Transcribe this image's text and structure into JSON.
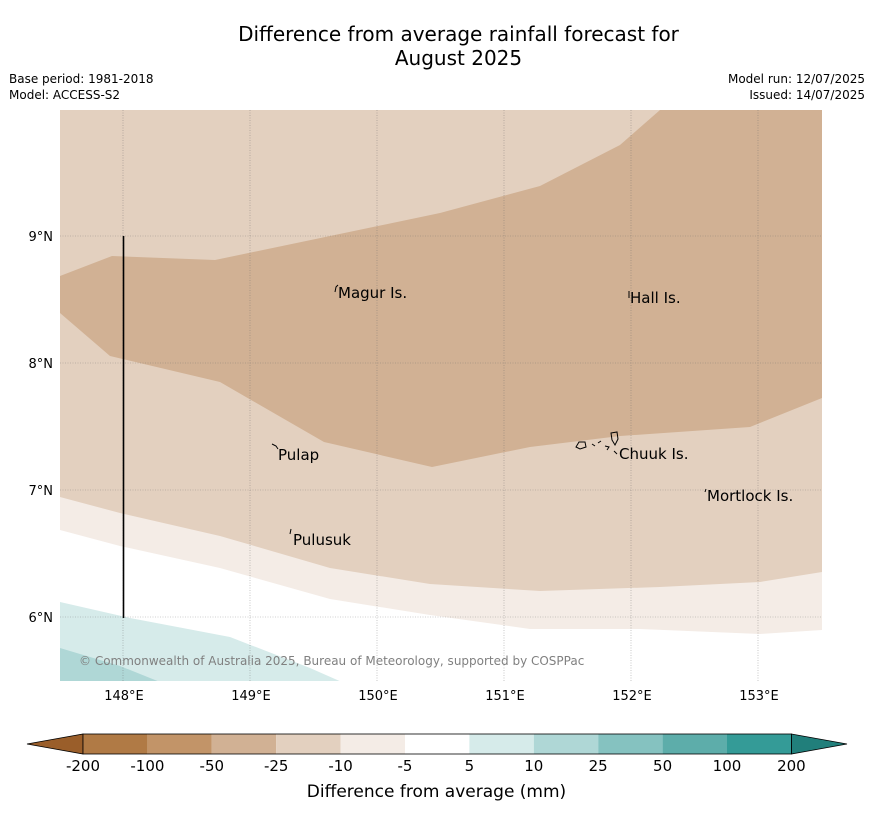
{
  "title": {
    "line1": "Difference from average rainfall forecast for",
    "line2": "August 2025"
  },
  "meta_left": {
    "base_period": "Base period: 1981-2018",
    "model": "Model: ACCESS-S2"
  },
  "meta_right": {
    "model_run": "Model run: 12/07/2025",
    "issued": "Issued: 14/07/2025"
  },
  "map": {
    "lon_ticks": [
      "148°E",
      "149°E",
      "150°E",
      "151°E",
      "152°E",
      "153°E"
    ],
    "lat_ticks": [
      "9°N",
      "8°N",
      "7°N",
      "6°N"
    ],
    "places": [
      "Magur Is.",
      "Hall Is.",
      "Pulap",
      "Chuuk Is.",
      "Mortlock Is.",
      "Pulusuk"
    ],
    "copyright": "© Commonwealth of Australia 2025, Bureau of Meteorology, supported by COSPPac"
  },
  "colorbar": {
    "ticks": [
      "-200",
      "-100",
      "-50",
      "-25",
      "-10",
      "-5",
      "5",
      "10",
      "25",
      "50",
      "100",
      "200"
    ],
    "colors": [
      "#9a5e2a",
      "#b07a45",
      "#c29468",
      "#d1b194",
      "#e3d0bf",
      "#f4ece6",
      "#ffffff",
      "#d6ebea",
      "#afd7d6",
      "#85c2c0",
      "#5dadaa",
      "#349b97",
      "#217f7b"
    ],
    "label": "Difference from average (mm)"
  }
}
